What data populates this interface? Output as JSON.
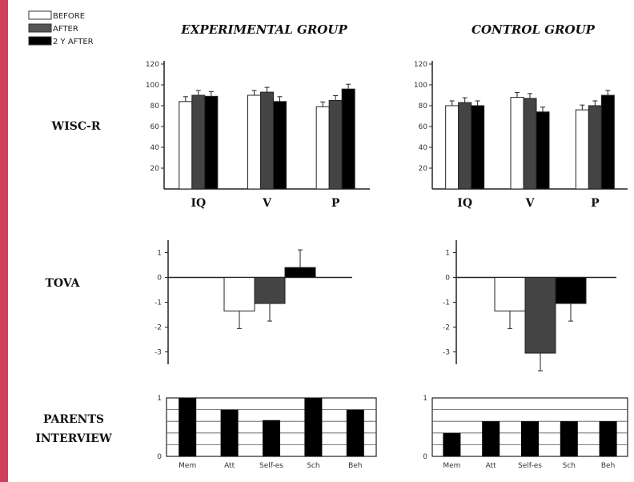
{
  "colors": {
    "before": "#ffffff",
    "after": "#444444",
    "after_2y": "#000000",
    "accent": "#c41e3a"
  },
  "legend": {
    "items": [
      {
        "label": "BEFORE",
        "color": "#ffffff"
      },
      {
        "label": "AFTER",
        "color": "#555555"
      },
      {
        "label": "2 Y AFTER",
        "color": "#000000"
      }
    ]
  },
  "columns": {
    "experimental": "EXPERIMENTAL GROUP",
    "control": "CONTROL GROUP"
  },
  "rows": {
    "wisc": "WISC-R",
    "tova": "TOVA",
    "parents_line1": "PARENTS",
    "parents_line2": "INTERVIEW"
  },
  "chart_data": [
    {
      "id": "wisc-experimental",
      "type": "bar",
      "categories": [
        "IQ",
        "V",
        "P"
      ],
      "series": [
        {
          "name": "BEFORE",
          "values": [
            84,
            90,
            79
          ]
        },
        {
          "name": "AFTER",
          "values": [
            90,
            93,
            85
          ]
        },
        {
          "name": "2 Y AFTER",
          "values": [
            89,
            84,
            96
          ]
        }
      ],
      "ylim": [
        0,
        120
      ],
      "yticks": [
        20,
        40,
        60,
        80,
        100,
        120
      ]
    },
    {
      "id": "wisc-control",
      "type": "bar",
      "categories": [
        "IQ",
        "V",
        "P"
      ],
      "series": [
        {
          "name": "BEFORE",
          "values": [
            80,
            88,
            76
          ]
        },
        {
          "name": "AFTER",
          "values": [
            83,
            87,
            80
          ]
        },
        {
          "name": "2 Y AFTER",
          "values": [
            80,
            74,
            90
          ]
        }
      ],
      "ylim": [
        0,
        120
      ],
      "yticks": [
        20,
        40,
        60,
        80,
        100,
        120
      ]
    },
    {
      "id": "tova-experimental",
      "type": "bar",
      "series": [
        {
          "name": "BEFORE",
          "values": [
            -1.35
          ]
        },
        {
          "name": "AFTER",
          "values": [
            -1.05
          ]
        },
        {
          "name": "2 Y AFTER",
          "values": [
            0.4
          ]
        }
      ],
      "ylim": [
        -3.5,
        1.5
      ],
      "yticks": [
        1,
        0,
        -1,
        -2,
        -3
      ]
    },
    {
      "id": "tova-control",
      "type": "bar",
      "series": [
        {
          "name": "BEFORE",
          "values": [
            -1.35
          ]
        },
        {
          "name": "AFTER",
          "values": [
            -3.05
          ]
        },
        {
          "name": "2 Y AFTER",
          "values": [
            -1.05
          ]
        }
      ],
      "ylim": [
        -3.5,
        1.5
      ],
      "yticks": [
        1,
        0,
        -1,
        -2,
        -3
      ]
    },
    {
      "id": "parents-experimental",
      "type": "bar",
      "categories": [
        "Mem",
        "Att",
        "Self-es",
        "Sch",
        "Beh"
      ],
      "values": [
        1.0,
        0.8,
        0.62,
        1.0,
        0.8
      ],
      "ylim": [
        0,
        1
      ],
      "yticks": [
        0,
        1
      ]
    },
    {
      "id": "parents-control",
      "type": "bar",
      "categories": [
        "Mem",
        "Att",
        "Self-es",
        "Sch",
        "Beh"
      ],
      "values": [
        0.4,
        0.6,
        0.6,
        0.6,
        0.6
      ],
      "ylim": [
        0,
        1
      ],
      "yticks": [
        0,
        1
      ]
    }
  ]
}
